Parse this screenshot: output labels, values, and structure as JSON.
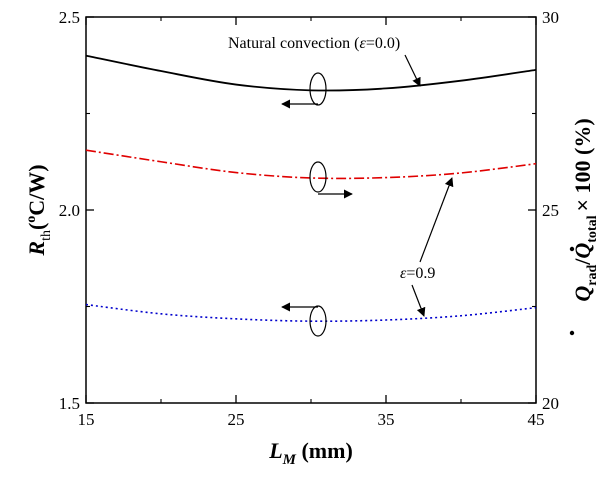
{
  "chart_data": {
    "type": "line",
    "xlabel": {
      "main": "L",
      "sub": "M",
      "unit": " (mm)"
    },
    "ylabel_left": {
      "main": "R",
      "sub": "th",
      "unit_open": "(",
      "unit_sup": "o",
      "unit_close": "C/W)"
    },
    "ylabel_right": {
      "q1": "Q",
      "sub1": "rad",
      "slash": "/",
      "q2": "Q",
      "sub2": "total",
      "rest": "× 100 (%)"
    },
    "xlim": [
      15,
      45
    ],
    "ylim_left": [
      1.5,
      2.5
    ],
    "ylim_right": [
      20,
      30
    ],
    "x_ticks": [
      "15",
      "25",
      "35",
      "45"
    ],
    "y_left_ticks": [
      "1.5",
      "2.0",
      "2.5"
    ],
    "y_right_ticks": [
      "20",
      "25",
      "30"
    ],
    "annotations": {
      "natural": {
        "prefix": "Natural convection (",
        "symbol": "ε",
        "suffix": "=0.0)"
      },
      "emissive": {
        "symbol": "ε",
        "suffix": "=0.9"
      }
    },
    "series": [
      {
        "style": "solid",
        "color": "#000000",
        "axis": "left",
        "x": [
          15,
          20,
          25,
          30,
          35,
          40,
          45
        ],
        "y": [
          2.4,
          2.36,
          2.325,
          2.31,
          2.315,
          2.335,
          2.363
        ]
      },
      {
        "style": "dashdot",
        "color": "#e00000",
        "axis": "right",
        "x": [
          15,
          20,
          25,
          30,
          35,
          40,
          45
        ],
        "y": [
          26.55,
          26.25,
          25.97,
          25.83,
          25.84,
          25.96,
          26.2
        ]
      },
      {
        "style": "dotted",
        "color": "#0000cc",
        "axis": "left",
        "x": [
          15,
          20,
          25,
          30,
          35,
          40,
          45
        ],
        "y": [
          1.755,
          1.731,
          1.718,
          1.712,
          1.715,
          1.726,
          1.747
        ]
      }
    ]
  }
}
